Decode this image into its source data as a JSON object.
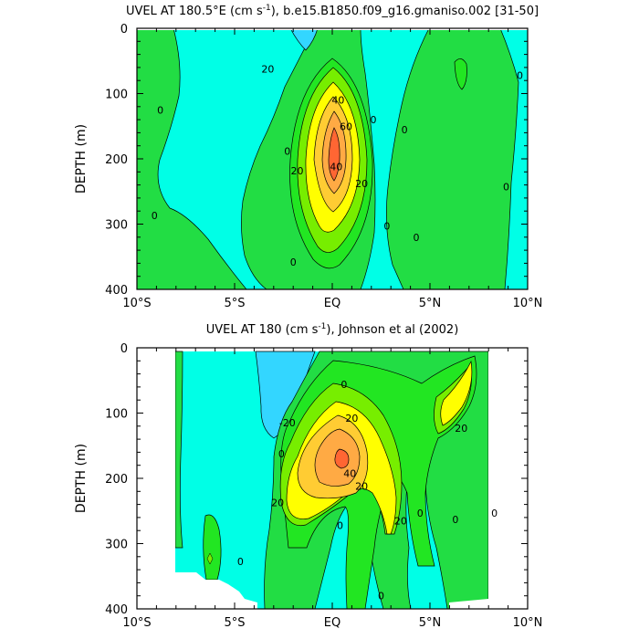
{
  "chart_data": [
    {
      "type": "contour",
      "title_prefix": "UVEL AT 180.5",
      "title_deg": "°",
      "title_dir": "E",
      "title_units_pre": " (cm s",
      "title_units_exp": "-1",
      "title_suffix": "), b.e15.B1850.f09_g16.gmaniso.002 [31-50]",
      "ylabel": "DEPTH (m)",
      "xlim": [
        -10,
        10
      ],
      "ylim": [
        400,
        0
      ],
      "xticks": [
        {
          "value": -10,
          "label": "10°S"
        },
        {
          "value": -5,
          "label": "5°S"
        },
        {
          "value": 0,
          "label": "EQ"
        },
        {
          "value": 5,
          "label": "5°N"
        },
        {
          "value": 10,
          "label": "10°N"
        }
      ],
      "yticks": [
        0,
        100,
        200,
        300,
        400
      ],
      "contour_interval": 10,
      "color_levels": [
        {
          "min": -20,
          "max": -10,
          "color": "#33d6ff"
        },
        {
          "min": -10,
          "max": 0,
          "color": "#00ffe6"
        },
        {
          "min": 0,
          "max": 10,
          "color": "#22dd44"
        },
        {
          "min": 10,
          "max": 20,
          "color": "#22e622"
        },
        {
          "min": 20,
          "max": 30,
          "color": "#77ee00"
        },
        {
          "min": 30,
          "max": 40,
          "color": "#ffff00"
        },
        {
          "min": 40,
          "max": 50,
          "color": "#ffcc33"
        },
        {
          "min": 50,
          "max": 60,
          "color": "#ffaa44"
        },
        {
          "min": 60,
          "max": 80,
          "color": "#ff6633"
        }
      ],
      "contour_labels": [
        {
          "lon": -3.3,
          "depth": 62,
          "text": "20"
        },
        {
          "lon": -8.8,
          "depth": 125,
          "text": "0"
        },
        {
          "lon": -9.1,
          "depth": 287,
          "text": "0"
        },
        {
          "lon": -2.3,
          "depth": 188,
          "text": "0"
        },
        {
          "lon": -1.8,
          "depth": 218,
          "text": "20"
        },
        {
          "lon": 0.3,
          "depth": 110,
          "text": "40"
        },
        {
          "lon": 0.2,
          "depth": 212,
          "text": "40"
        },
        {
          "lon": 0.7,
          "depth": 150,
          "text": "60"
        },
        {
          "lon": 1.5,
          "depth": 238,
          "text": "20"
        },
        {
          "lon": 2.1,
          "depth": 140,
          "text": "0"
        },
        {
          "lon": 2.8,
          "depth": 303,
          "text": "0"
        },
        {
          "lon": 3.7,
          "depth": 155,
          "text": "0"
        },
        {
          "lon": -2.0,
          "depth": 358,
          "text": "0"
        },
        {
          "lon": 4.3,
          "depth": 320,
          "text": "0"
        },
        {
          "lon": 8.9,
          "depth": 243,
          "text": "0"
        },
        {
          "lon": 9.6,
          "depth": 72,
          "text": "0"
        }
      ]
    },
    {
      "type": "contour",
      "title_prefix": "UVEL AT 180",
      "title_units_pre": " (cm s",
      "title_units_exp": "-1",
      "title_suffix": "), Johnson et al (2002)",
      "ylabel": "DEPTH (m)",
      "xlim": [
        -10,
        10
      ],
      "ylim": [
        400,
        0
      ],
      "xticks": [
        {
          "value": -10,
          "label": "10°S"
        },
        {
          "value": -5,
          "label": "5°S"
        },
        {
          "value": 0,
          "label": "EQ"
        },
        {
          "value": 5,
          "label": "5°N"
        },
        {
          "value": 10,
          "label": "10°N"
        }
      ],
      "yticks": [
        0,
        100,
        200,
        300,
        400
      ],
      "contour_interval": 10,
      "data_lon_range": [
        -8,
        8
      ],
      "color_levels": [
        {
          "min": -20,
          "max": -10,
          "color": "#33d6ff"
        },
        {
          "min": -10,
          "max": 0,
          "color": "#00ffe6"
        },
        {
          "min": 0,
          "max": 10,
          "color": "#22dd44"
        },
        {
          "min": 10,
          "max": 20,
          "color": "#22e622"
        },
        {
          "min": 20,
          "max": 30,
          "color": "#77ee00"
        },
        {
          "min": 30,
          "max": 40,
          "color": "#ffff00"
        },
        {
          "min": 40,
          "max": 50,
          "color": "#ffcc33"
        },
        {
          "min": 50,
          "max": 60,
          "color": "#ffaa44"
        },
        {
          "min": 60,
          "max": 80,
          "color": "#ff6633"
        }
      ],
      "contour_labels": [
        {
          "lon": -2.3,
          "depth": 115,
          "text": "-20"
        },
        {
          "lon": 0.6,
          "depth": 56,
          "text": "0"
        },
        {
          "lon": 1.0,
          "depth": 108,
          "text": "20"
        },
        {
          "lon": -2.6,
          "depth": 162,
          "text": "0"
        },
        {
          "lon": -2.8,
          "depth": 237,
          "text": "20"
        },
        {
          "lon": 0.9,
          "depth": 192,
          "text": "40"
        },
        {
          "lon": 1.5,
          "depth": 212,
          "text": "20"
        },
        {
          "lon": 3.5,
          "depth": 265,
          "text": "20"
        },
        {
          "lon": 0.4,
          "depth": 272,
          "text": "0"
        },
        {
          "lon": 4.5,
          "depth": 253,
          "text": "0"
        },
        {
          "lon": 6.3,
          "depth": 263,
          "text": "0"
        },
        {
          "lon": 8.3,
          "depth": 253,
          "text": "0"
        },
        {
          "lon": 6.6,
          "depth": 123,
          "text": "20"
        },
        {
          "lon": -4.7,
          "depth": 327,
          "text": "0"
        },
        {
          "lon": 2.5,
          "depth": 380,
          "text": "0"
        }
      ]
    }
  ]
}
